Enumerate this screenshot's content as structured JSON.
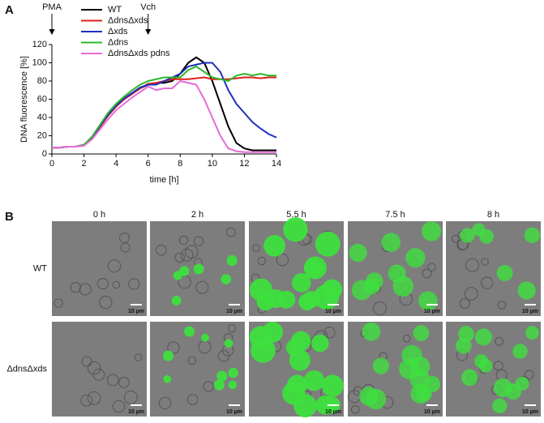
{
  "panel_labels": [
    "A",
    "B"
  ],
  "chart_data": {
    "type": "line",
    "xlabel": "time [h]",
    "ylabel": "DNA fluorescence [%]",
    "xlim": [
      0,
      14
    ],
    "xticks": [
      0,
      2,
      4,
      6,
      8,
      10,
      12,
      14
    ],
    "ylim": [
      0,
      120
    ],
    "yticks": [
      0,
      20,
      40,
      60,
      80,
      100,
      120
    ],
    "annotations": [
      {
        "text": "PMA",
        "x": 0
      },
      {
        "text": "Vch",
        "x": 6
      }
    ],
    "x": [
      0,
      0.5,
      1,
      1.5,
      2,
      2.5,
      3,
      3.5,
      4,
      4.5,
      5,
      5.5,
      6,
      6.5,
      7,
      7.5,
      8,
      8.5,
      9,
      9.5,
      10,
      10.5,
      11,
      11.5,
      12,
      12.5,
      13,
      13.5,
      14
    ],
    "series": [
      {
        "name": "WT",
        "color": "#000000",
        "values": [
          7,
          7,
          8,
          8,
          10,
          18,
          30,
          42,
          52,
          60,
          66,
          72,
          76,
          78,
          78,
          80,
          88,
          100,
          106,
          100,
          80,
          55,
          30,
          12,
          6,
          4,
          4,
          4,
          4
        ]
      },
      {
        "name": "ΔdnsΔxds",
        "color": "#e0201b",
        "values": [
          7,
          7,
          8,
          8,
          10,
          18,
          30,
          42,
          52,
          60,
          66,
          72,
          77,
          78,
          80,
          82,
          82,
          82,
          83,
          84,
          82,
          82,
          82,
          83,
          84,
          84,
          83,
          84,
          84
        ]
      },
      {
        "name": "Δxds",
        "color": "#1f2fc0",
        "values": [
          7,
          7,
          8,
          8,
          10,
          18,
          31,
          43,
          53,
          61,
          67,
          73,
          76,
          76,
          80,
          84,
          88,
          96,
          98,
          100,
          100,
          90,
          70,
          55,
          45,
          35,
          28,
          22,
          18
        ]
      },
      {
        "name": "Δdns",
        "color": "#2db82d",
        "values": [
          7,
          7,
          8,
          8,
          10,
          19,
          32,
          45,
          55,
          63,
          70,
          76,
          80,
          82,
          84,
          84,
          84,
          92,
          96,
          90,
          84,
          82,
          80,
          86,
          88,
          86,
          88,
          86,
          86
        ]
      },
      {
        "name": "ΔdnsΔxds pdns",
        "color": "#e86ad8",
        "values": [
          7,
          7,
          8,
          8,
          9,
          16,
          27,
          38,
          48,
          55,
          62,
          68,
          74,
          70,
          72,
          72,
          80,
          78,
          76,
          60,
          40,
          20,
          6,
          3,
          2,
          2,
          2,
          2,
          2
        ]
      }
    ]
  },
  "micrographs": {
    "columns": [
      "0 h",
      "2 h",
      "5.5 h",
      "7.5 h",
      "8 h"
    ],
    "rows": [
      "WT",
      "ΔdnsΔxds"
    ],
    "scale_bar": "10 µm"
  }
}
